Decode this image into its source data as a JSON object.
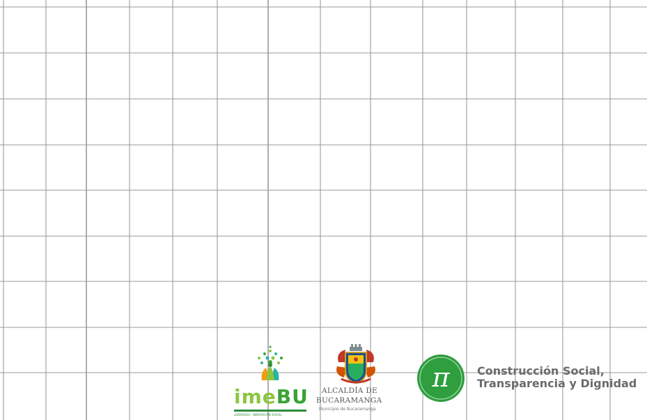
{
  "imebu": {
    "word_part1": "ime",
    "word_part2": "BU",
    "tagline": "LIDERAZGO · INNOVACIÓN SOCIAL",
    "icon": "tree-people-icon",
    "colors": {
      "light_green": "#8cc63f",
      "green": "#3aa335",
      "dark_green": "#2e8b3a",
      "orange": "#f39c12",
      "teal": "#2bb3a3"
    }
  },
  "alcaldia": {
    "line1": "ALCALDÍA DE",
    "line2": "BUCARAMANGA",
    "line3": "Municipio de Bucaramanga",
    "icon": "coat-of-arms-icon"
  },
  "campaign": {
    "symbol": "π",
    "icon": "pi-circle-icon",
    "slogan_line1": "Construcción Social,",
    "slogan_line2": "Transparencia y Dignidad",
    "colors": {
      "circle": "#2e9e3e",
      "text": "#6b6b6b"
    }
  },
  "grid": {
    "line_color": "#9a9a9a",
    "background": "#ffffff"
  }
}
